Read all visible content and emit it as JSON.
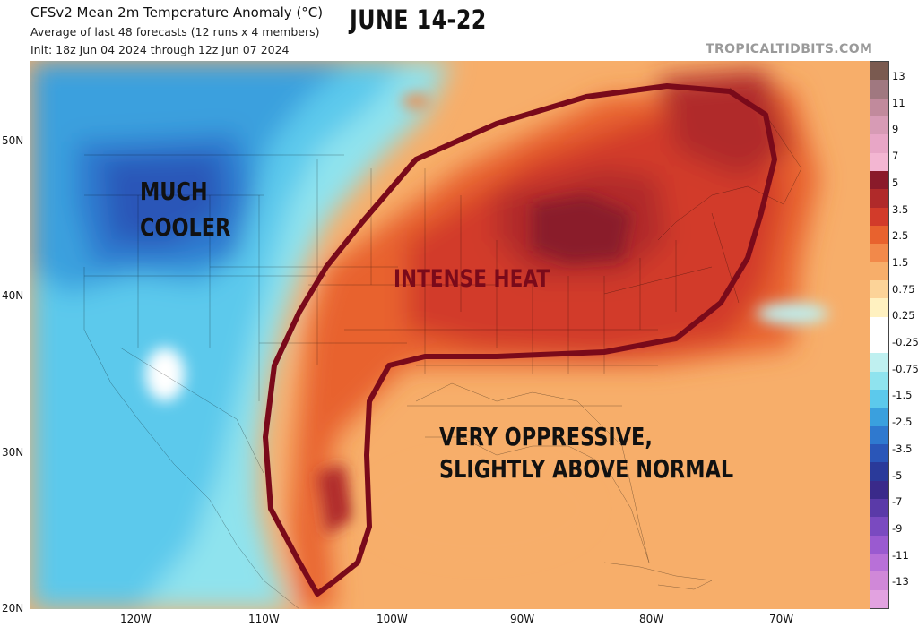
{
  "header": {
    "title": "CFSv2 Mean 2m Temperature Anomaly (°C)",
    "subtitle1": "Average of last 48 forecasts (12 runs x 4 members)",
    "subtitle2": "Init: 18z Jun 04 2024 through 12z Jun 07 2024",
    "headline": "JUNE 14-22",
    "credit": "TROPICALTIDBITS.COM"
  },
  "annotations": {
    "west": [
      "MUCH",
      "COOLER"
    ],
    "center": "INTENSE HEAT",
    "southeast": [
      "VERY OPPRESSIVE,",
      "SLIGHTLY ABOVE NORMAL"
    ]
  },
  "axes": {
    "lat_labels": [
      "50N",
      "40N",
      "30N",
      "20N"
    ],
    "lon_labels": [
      "120W",
      "110W",
      "100W",
      "90W",
      "80W",
      "70W"
    ]
  },
  "colorbar": {
    "labels": [
      "13",
      "11",
      "9",
      "7",
      "5",
      "3.5",
      "2.5",
      "1.5",
      "0.75",
      "0.25",
      "-0.25",
      "-0.75",
      "-1.5",
      "-2.5",
      "-3.5",
      "-5",
      "-7",
      "-9",
      "-11",
      "-13"
    ],
    "colors": [
      "#7a5a50",
      "#a07880",
      "#c18a9c",
      "#d79bb5",
      "#e8a6c6",
      "#f3b6d2",
      "#8a1a2a",
      "#b02a2a",
      "#d23b2a",
      "#e8622e",
      "#f2894a",
      "#f7ae6a",
      "#fcd398",
      "#fff1c0",
      "#ffffff",
      "#ffffff",
      "#bff0f0",
      "#8fe3ee",
      "#5cc9ec",
      "#3aa0de",
      "#2f79cf",
      "#2a56b8",
      "#2a3a9a",
      "#3a2a8a",
      "#5a3aa8",
      "#7a4ac0",
      "#9a5ad0",
      "#b870d8",
      "#d088d8",
      "#e2a2e0"
    ]
  }
}
